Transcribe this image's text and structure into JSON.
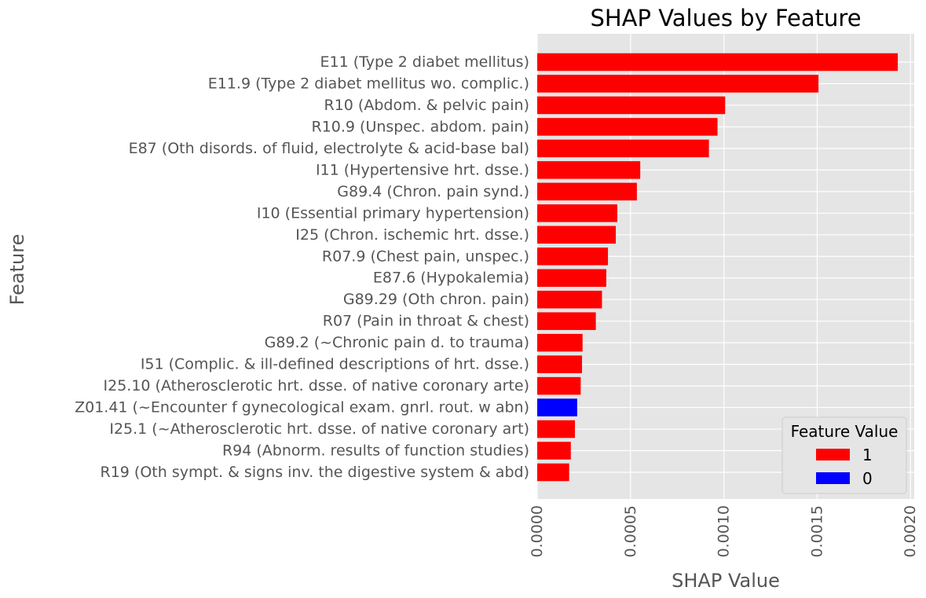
{
  "chart_data": {
    "type": "bar",
    "orientation": "horizontal",
    "title": "SHAP Values by Feature",
    "xlabel": "SHAP Value",
    "ylabel": "Feature",
    "xlim": [
      0,
      0.00202
    ],
    "xticks": [
      "0.0000",
      "0.0005",
      "0.0010",
      "0.0015",
      "0.0020"
    ],
    "xtick_values": [
      0,
      0.0005,
      0.001,
      0.0015,
      0.002
    ],
    "grid": true,
    "legend": {
      "title": "Feature Value",
      "placement": "lower-right",
      "entries": [
        {
          "label": "1",
          "color": "#ff0000"
        },
        {
          "label": "0",
          "color": "#0000ff"
        }
      ]
    },
    "categories": [
      "E11 (Type 2 diabet mellitus)",
      "E11.9 (Type 2 diabet mellitus wo. complic.)",
      "R10 (Abdom. & pelvic pain)",
      "R10.9 (Unspec. abdom. pain)",
      "E87 (Oth disords. of fluid, electrolyte & acid-base bal)",
      "I11 (Hypertensive hrt. dsse.)",
      "G89.4 (Chron. pain synd.)",
      "I10 (Essential primary hypertension)",
      "I25 (Chron. ischemic hrt. dsse.)",
      "R07.9 (Chest pain, unspec.)",
      "E87.6 (Hypokalemia)",
      "G89.29 (Oth chron. pain)",
      "R07 (Pain in throat & chest)",
      "G89.2 (~Chronic pain d. to trauma)",
      "I51 (Complic. & ill-defined descriptions of hrt. dsse.)",
      "I25.10 (Atherosclerotic hrt. dsse. of native coronary arte)",
      "Z01.41 (~Encounter f gynecological exam. gnrl. rout. w abn)",
      "I25.1 (~Atherosclerotic hrt. dsse. of native coronary art)",
      "R94 (Abnorm. results of function studies)",
      "R19 (Oth sympt. & signs inv. the digestive system & abd)"
    ],
    "values": [
      0.001932,
      0.001507,
      0.001007,
      0.000966,
      0.00092,
      0.000552,
      0.000534,
      0.000429,
      0.000421,
      0.000379,
      0.00037,
      0.000347,
      0.000314,
      0.000243,
      0.00024,
      0.000233,
      0.000214,
      0.000202,
      0.00018,
      0.000171
    ],
    "feature_values": [
      "1",
      "1",
      "1",
      "1",
      "1",
      "1",
      "1",
      "1",
      "1",
      "1",
      "1",
      "1",
      "1",
      "1",
      "1",
      "1",
      "0",
      "1",
      "1",
      "1"
    ],
    "colors": {
      "1": "#ff0000",
      "0": "#0000ff",
      "plot_bg": "#e5e5e5",
      "grid": "#ffffff",
      "tick_text": "#555555"
    }
  }
}
